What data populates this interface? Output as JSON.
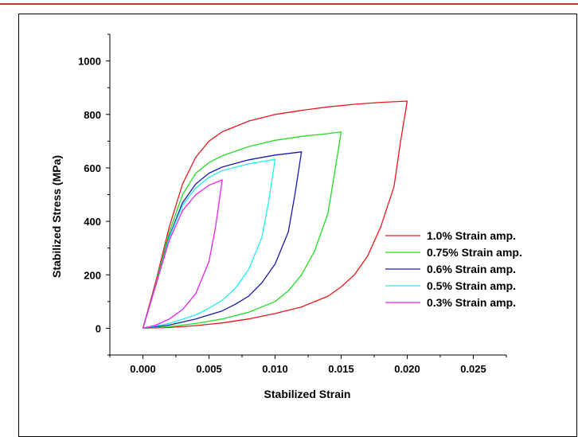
{
  "chart_data": {
    "type": "line",
    "title": "",
    "xlabel": "Stabilized Strain",
    "ylabel": "Stabilized Stress (MPa)",
    "xlim": [
      -0.0025,
      0.0275
    ],
    "ylim": [
      -100,
      1100
    ],
    "xticks": [
      0.0,
      0.005,
      0.01,
      0.015,
      0.02,
      0.025
    ],
    "xtick_labels": [
      "0.000",
      "0.005",
      "0.010",
      "0.015",
      "0.020",
      "0.025"
    ],
    "yticks": [
      0,
      200,
      400,
      600,
      800,
      1000
    ],
    "ytick_labels": [
      "0",
      "200",
      "400",
      "600",
      "800",
      "1000"
    ],
    "grid": false,
    "legend_position": "right",
    "series": [
      {
        "name": "1.0% Strain amp.",
        "color": "#e8191e",
        "strain_max": 0.02,
        "stress_max": 850,
        "loading": [
          [
            0.0,
            0
          ],
          [
            0.001,
            180
          ],
          [
            0.002,
            380
          ],
          [
            0.003,
            540
          ],
          [
            0.004,
            640
          ],
          [
            0.005,
            700
          ],
          [
            0.006,
            735
          ],
          [
            0.008,
            775
          ],
          [
            0.01,
            800
          ],
          [
            0.012,
            815
          ],
          [
            0.014,
            828
          ],
          [
            0.016,
            838
          ],
          [
            0.018,
            845
          ],
          [
            0.02,
            850
          ]
        ],
        "unloading": [
          [
            0.02,
            850
          ],
          [
            0.0195,
            700
          ],
          [
            0.019,
            530
          ],
          [
            0.018,
            380
          ],
          [
            0.017,
            270
          ],
          [
            0.016,
            200
          ],
          [
            0.015,
            155
          ],
          [
            0.014,
            120
          ],
          [
            0.012,
            80
          ],
          [
            0.01,
            55
          ],
          [
            0.008,
            35
          ],
          [
            0.006,
            20
          ],
          [
            0.004,
            10
          ],
          [
            0.002,
            3
          ],
          [
            0.0,
            0
          ]
        ]
      },
      {
        "name": "0.75% Strain amp.",
        "color": "#22dd22",
        "strain_max": 0.015,
        "stress_max": 735,
        "loading": [
          [
            0.0,
            0
          ],
          [
            0.001,
            170
          ],
          [
            0.002,
            360
          ],
          [
            0.003,
            500
          ],
          [
            0.004,
            580
          ],
          [
            0.005,
            620
          ],
          [
            0.006,
            645
          ],
          [
            0.008,
            680
          ],
          [
            0.01,
            703
          ],
          [
            0.012,
            718
          ],
          [
            0.014,
            728
          ],
          [
            0.015,
            735
          ]
        ],
        "unloading": [
          [
            0.015,
            735
          ],
          [
            0.0145,
            580
          ],
          [
            0.014,
            430
          ],
          [
            0.013,
            290
          ],
          [
            0.012,
            200
          ],
          [
            0.011,
            140
          ],
          [
            0.01,
            100
          ],
          [
            0.008,
            60
          ],
          [
            0.006,
            35
          ],
          [
            0.004,
            18
          ],
          [
            0.002,
            6
          ],
          [
            0.0,
            0
          ]
        ]
      },
      {
        "name": "0.6% Strain amp.",
        "color": "#1a1aaa",
        "strain_max": 0.012,
        "stress_max": 660,
        "loading": [
          [
            0.0,
            0
          ],
          [
            0.001,
            165
          ],
          [
            0.002,
            345
          ],
          [
            0.003,
            470
          ],
          [
            0.004,
            540
          ],
          [
            0.005,
            580
          ],
          [
            0.006,
            603
          ],
          [
            0.008,
            630
          ],
          [
            0.01,
            648
          ],
          [
            0.012,
            660
          ]
        ],
        "unloading": [
          [
            0.012,
            660
          ],
          [
            0.0115,
            500
          ],
          [
            0.011,
            360
          ],
          [
            0.01,
            240
          ],
          [
            0.009,
            170
          ],
          [
            0.008,
            120
          ],
          [
            0.007,
            90
          ],
          [
            0.006,
            65
          ],
          [
            0.004,
            35
          ],
          [
            0.002,
            12
          ],
          [
            0.0,
            0
          ]
        ]
      },
      {
        "name": "0.5% Strain amp.",
        "color": "#22eeee",
        "strain_max": 0.01,
        "stress_max": 632,
        "loading": [
          [
            0.0,
            0
          ],
          [
            0.001,
            165
          ],
          [
            0.002,
            340
          ],
          [
            0.003,
            460
          ],
          [
            0.004,
            525
          ],
          [
            0.005,
            565
          ],
          [
            0.006,
            590
          ],
          [
            0.008,
            615
          ],
          [
            0.01,
            632
          ]
        ],
        "unloading": [
          [
            0.01,
            632
          ],
          [
            0.0095,
            470
          ],
          [
            0.009,
            340
          ],
          [
            0.008,
            220
          ],
          [
            0.007,
            150
          ],
          [
            0.006,
            105
          ],
          [
            0.005,
            75
          ],
          [
            0.004,
            50
          ],
          [
            0.002,
            18
          ],
          [
            0.0,
            0
          ]
        ]
      },
      {
        "name": "0.3% Strain amp.",
        "color": "#ee22ee",
        "strain_max": 0.006,
        "stress_max": 555,
        "loading": [
          [
            0.0,
            0
          ],
          [
            0.001,
            165
          ],
          [
            0.002,
            330
          ],
          [
            0.003,
            440
          ],
          [
            0.004,
            500
          ],
          [
            0.005,
            535
          ],
          [
            0.006,
            555
          ]
        ],
        "unloading": [
          [
            0.006,
            555
          ],
          [
            0.0055,
            380
          ],
          [
            0.005,
            250
          ],
          [
            0.004,
            130
          ],
          [
            0.003,
            70
          ],
          [
            0.002,
            35
          ],
          [
            0.001,
            12
          ],
          [
            0.0,
            0
          ]
        ]
      }
    ]
  }
}
